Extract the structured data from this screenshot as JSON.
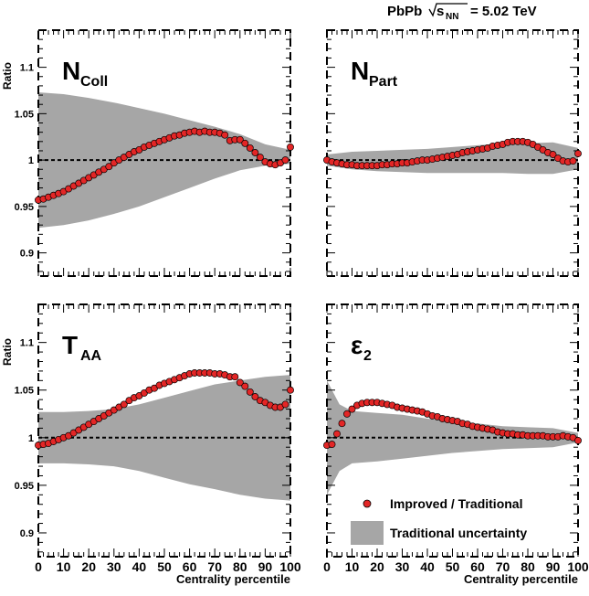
{
  "header": {
    "system": "PbPb",
    "energy_prefix": "s",
    "energy_sub": "NN",
    "energy_value": "= 5.02 TeV"
  },
  "legend": {
    "points_label": "Improved / Traditional",
    "band_label": "Traditional uncertainty"
  },
  "axes": {
    "ylabel": "Ratio",
    "xlabel": "Centrality percentile",
    "x_ticks": [
      "0",
      "10",
      "20",
      "30",
      "40",
      "50",
      "60",
      "70",
      "80",
      "90",
      "100"
    ],
    "y_ticks": [
      "0.9",
      "0.95",
      "1",
      "1.05",
      "1.1"
    ]
  },
  "colors": {
    "band": "#a6a6a6",
    "marker": "#e32626",
    "marker_edge": "#000000"
  },
  "chart_data": [
    {
      "type": "scatter",
      "panel_label_main": "N",
      "panel_label_sub": "Coll",
      "xlim": [
        0,
        100
      ],
      "ylim": [
        0.875,
        1.14
      ],
      "grid": false,
      "reference_line": 1,
      "series": [
        {
          "name": "Improved / Traditional",
          "x": [
            0,
            2,
            4,
            6,
            8,
            10,
            12,
            14,
            16,
            18,
            20,
            22,
            24,
            26,
            28,
            30,
            32,
            34,
            36,
            38,
            40,
            42,
            44,
            46,
            48,
            50,
            52,
            54,
            56,
            58,
            60,
            62,
            64,
            66,
            68,
            70,
            72,
            74,
            76,
            78,
            80,
            82,
            84,
            86,
            88,
            90,
            92,
            94,
            96,
            98,
            100
          ],
          "y": [
            0.957,
            0.958,
            0.96,
            0.962,
            0.964,
            0.966,
            0.969,
            0.972,
            0.975,
            0.978,
            0.981,
            0.984,
            0.987,
            0.99,
            0.993,
            0.997,
            1.0,
            1.003,
            1.006,
            1.009,
            1.011,
            1.014,
            1.016,
            1.018,
            1.02,
            1.022,
            1.024,
            1.026,
            1.027,
            1.029,
            1.03,
            1.031,
            1.03,
            1.031,
            1.03,
            1.03,
            1.029,
            1.027,
            1.021,
            1.022,
            1.022,
            1.018,
            1.013,
            1.008,
            1.003,
            0.998,
            0.996,
            0.995,
            0.997,
            1.0,
            1.014
          ]
        }
      ],
      "band": {
        "name": "Traditional uncertainty",
        "x": [
          0,
          10,
          20,
          30,
          40,
          50,
          60,
          70,
          80,
          90,
          100
        ],
        "upper": [
          1.073,
          1.071,
          1.067,
          1.062,
          1.056,
          1.05,
          1.043,
          1.036,
          1.028,
          1.017,
          1.011
        ],
        "lower": [
          0.927,
          0.93,
          0.935,
          0.942,
          0.95,
          0.96,
          0.97,
          0.98,
          0.989,
          0.994,
          0.996
        ]
      }
    },
    {
      "type": "scatter",
      "panel_label_main": "N",
      "panel_label_sub": "Part",
      "xlim": [
        0,
        100
      ],
      "ylim": [
        0.875,
        1.14
      ],
      "grid": false,
      "reference_line": 1,
      "series": [
        {
          "name": "Improved / Traditional",
          "x": [
            0,
            2,
            4,
            6,
            8,
            10,
            12,
            14,
            16,
            18,
            20,
            22,
            24,
            26,
            28,
            30,
            32,
            34,
            36,
            38,
            40,
            42,
            44,
            46,
            48,
            50,
            52,
            54,
            56,
            58,
            60,
            62,
            64,
            66,
            68,
            70,
            72,
            74,
            76,
            78,
            80,
            82,
            84,
            86,
            88,
            90,
            92,
            94,
            96,
            98,
            100
          ],
          "y": [
            1.0,
            0.998,
            0.997,
            0.996,
            0.995,
            0.995,
            0.994,
            0.994,
            0.994,
            0.994,
            0.994,
            0.995,
            0.995,
            0.996,
            0.996,
            0.997,
            0.997,
            0.998,
            0.999,
            1.0,
            1.0,
            1.001,
            1.002,
            1.003,
            1.004,
            1.005,
            1.006,
            1.008,
            1.009,
            1.01,
            1.011,
            1.012,
            1.013,
            1.015,
            1.016,
            1.017,
            1.019,
            1.02,
            1.02,
            1.02,
            1.019,
            1.017,
            1.014,
            1.011,
            1.008,
            1.006,
            1.002,
            0.999,
            0.998,
            0.999,
            1.007
          ]
        }
      ],
      "band": {
        "name": "Traditional uncertainty",
        "x": [
          0,
          10,
          20,
          30,
          40,
          50,
          60,
          70,
          80,
          90,
          100
        ],
        "upper": [
          1.006,
          1.009,
          1.01,
          1.011,
          1.012,
          1.014,
          1.016,
          1.018,
          1.018,
          1.019,
          1.013
        ],
        "lower": [
          0.994,
          0.99,
          0.988,
          0.987,
          0.986,
          0.986,
          0.986,
          0.986,
          0.985,
          0.985,
          0.99
        ]
      }
    },
    {
      "type": "scatter",
      "panel_label_main": "T",
      "panel_label_sub": "AA",
      "xlim": [
        0,
        100
      ],
      "ylim": [
        0.875,
        1.14
      ],
      "grid": false,
      "reference_line": 1,
      "series": [
        {
          "name": "Improved / Traditional",
          "x": [
            0,
            2,
            4,
            6,
            8,
            10,
            12,
            14,
            16,
            18,
            20,
            22,
            24,
            26,
            28,
            30,
            32,
            34,
            36,
            38,
            40,
            42,
            44,
            46,
            48,
            50,
            52,
            54,
            56,
            58,
            60,
            62,
            64,
            66,
            68,
            70,
            72,
            74,
            76,
            78,
            80,
            82,
            84,
            86,
            88,
            90,
            92,
            94,
            96,
            98,
            100
          ],
          "y": [
            0.992,
            0.993,
            0.994,
            0.996,
            0.998,
            1.0,
            1.002,
            1.005,
            1.008,
            1.011,
            1.014,
            1.017,
            1.02,
            1.023,
            1.026,
            1.029,
            1.032,
            1.035,
            1.039,
            1.042,
            1.044,
            1.047,
            1.05,
            1.052,
            1.055,
            1.057,
            1.059,
            1.061,
            1.063,
            1.065,
            1.067,
            1.068,
            1.068,
            1.068,
            1.068,
            1.067,
            1.067,
            1.066,
            1.064,
            1.064,
            1.058,
            1.054,
            1.048,
            1.043,
            1.039,
            1.037,
            1.034,
            1.032,
            1.032,
            1.035,
            1.05
          ]
        }
      ],
      "band": {
        "name": "Traditional uncertainty",
        "x": [
          0,
          10,
          20,
          30,
          40,
          50,
          60,
          70,
          80,
          90,
          100
        ],
        "upper": [
          1.027,
          1.027,
          1.028,
          1.03,
          1.035,
          1.042,
          1.049,
          1.056,
          1.06,
          1.064,
          1.066
        ],
        "lower": [
          0.973,
          0.973,
          0.972,
          0.97,
          0.965,
          0.958,
          0.951,
          0.946,
          0.94,
          0.936,
          0.934
        ]
      }
    },
    {
      "type": "scatter",
      "panel_label_main": "ε",
      "panel_label_sub": "2",
      "xlim": [
        0,
        100
      ],
      "ylim": [
        0.875,
        1.14
      ],
      "grid": false,
      "reference_line": 1,
      "legend_position": "bottom-right",
      "series": [
        {
          "name": "Improved / Traditional",
          "x": [
            0,
            2,
            4,
            6,
            8,
            10,
            12,
            14,
            16,
            18,
            20,
            22,
            24,
            26,
            28,
            30,
            32,
            34,
            36,
            38,
            40,
            42,
            44,
            46,
            48,
            50,
            52,
            54,
            56,
            58,
            60,
            62,
            64,
            66,
            68,
            70,
            72,
            74,
            76,
            78,
            80,
            82,
            84,
            86,
            88,
            90,
            92,
            94,
            96,
            98,
            100
          ],
          "y": [
            0.992,
            0.993,
            1.004,
            1.015,
            1.025,
            1.03,
            1.034,
            1.036,
            1.037,
            1.037,
            1.037,
            1.036,
            1.035,
            1.034,
            1.032,
            1.031,
            1.03,
            1.029,
            1.028,
            1.027,
            1.025,
            1.023,
            1.022,
            1.02,
            1.019,
            1.018,
            1.017,
            1.015,
            1.014,
            1.012,
            1.011,
            1.01,
            1.009,
            1.008,
            1.006,
            1.005,
            1.004,
            1.004,
            1.003,
            1.003,
            1.002,
            1.002,
            1.002,
            1.002,
            1.001,
            1.001,
            1.001,
            1.002,
            1.001,
            1.0,
            0.997
          ]
        }
      ],
      "band": {
        "name": "Traditional uncertainty",
        "x": [
          0,
          5,
          10,
          20,
          30,
          40,
          50,
          60,
          70,
          80,
          90,
          100
        ],
        "upper": [
          1.06,
          1.035,
          1.028,
          1.026,
          1.024,
          1.02,
          1.017,
          1.015,
          1.012,
          1.011,
          1.01,
          1.005
        ],
        "lower": [
          0.94,
          0.965,
          0.973,
          0.975,
          0.978,
          0.981,
          0.984,
          0.986,
          0.988,
          0.989,
          0.99,
          0.995
        ]
      }
    }
  ]
}
